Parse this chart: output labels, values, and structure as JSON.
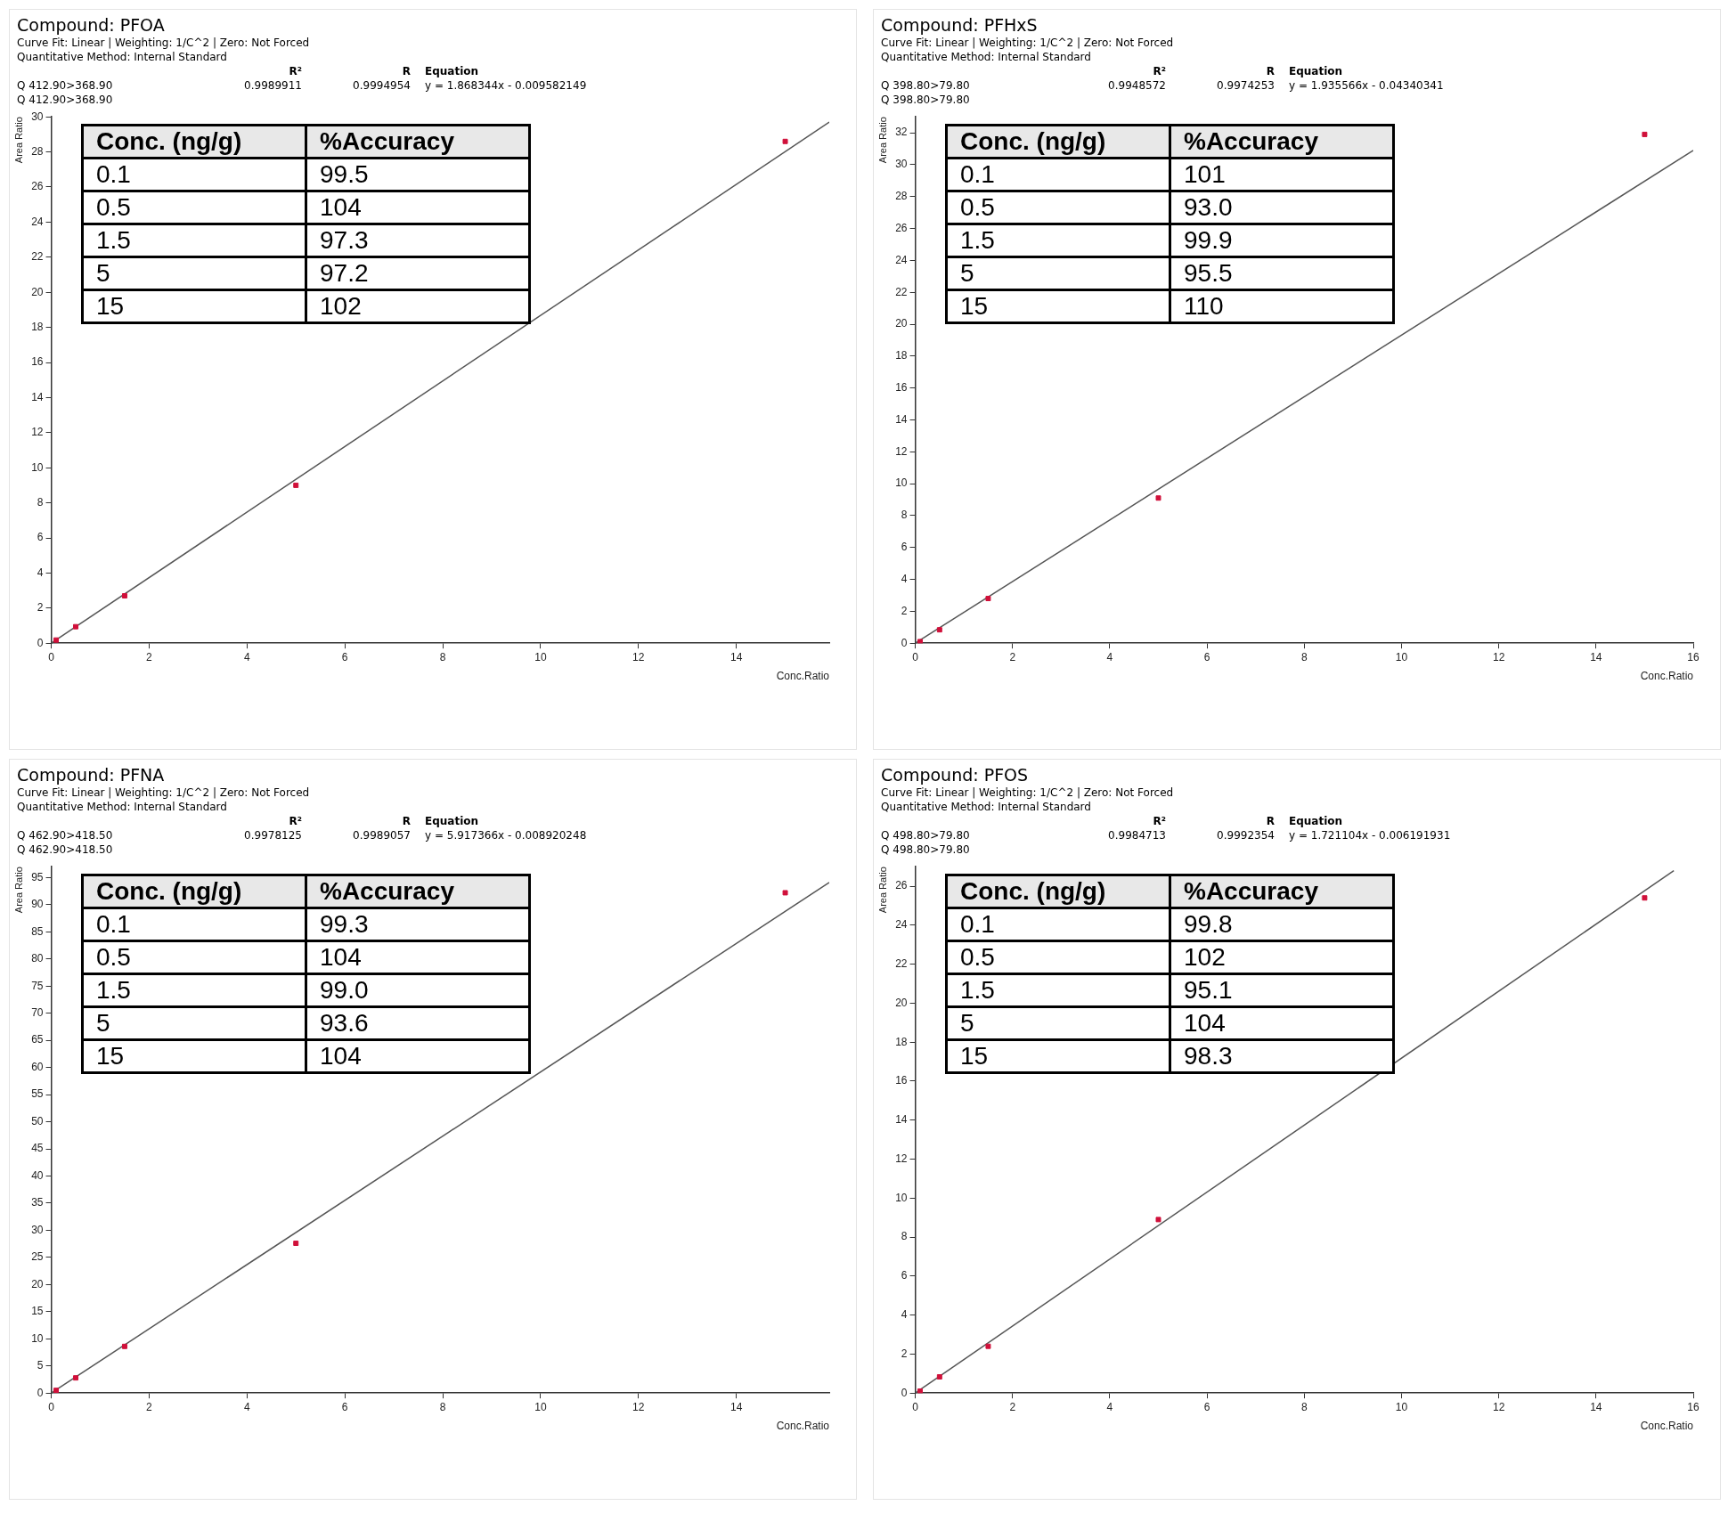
{
  "chart_data": [
    {
      "type": "scatter",
      "title": "Compound: PFOA",
      "subtitle": "Curve Fit: Linear | Weighting: 1/C^2 | Zero: Not Forced",
      "xlabel": "Conc.Ratio",
      "ylabel": "Area Ratio",
      "x": [
        0.1,
        0.5,
        1.5,
        5,
        15
      ],
      "xlim": [
        0,
        15.9
      ],
      "xticks": [
        0,
        2,
        4,
        6,
        8,
        10,
        12,
        14
      ],
      "ylim": [
        0,
        30
      ],
      "yticks": [
        0,
        2,
        4,
        6,
        8,
        10,
        12,
        14,
        16,
        18,
        20,
        22,
        24,
        26,
        28,
        30
      ],
      "grid": false,
      "legend": false,
      "marker": "square",
      "series": [
        {
          "type": "scatter",
          "color": "#d0103a",
          "values": [
            0.18,
            0.94,
            2.7,
            9.0,
            28.6
          ]
        },
        {
          "type": "line",
          "color": "#555555",
          "marker": "none",
          "x": [
            0,
            15.9
          ],
          "values": [
            0,
            29.7
          ]
        }
      ],
      "annotations": [
        "Quantitative Method: Internal Standard",
        "R²",
        "R",
        "Equation",
        "Q 412.90>368.90",
        "0.9989911",
        "0.9994954",
        "y = 1.868344x - 0.009582149",
        "Q 412.90>368.90",
        "Conc. (ng/g)",
        "%Accuracy",
        "0.1",
        "99.5",
        "0.5",
        "104",
        "1.5",
        "97.3",
        "5",
        "97.2",
        "15",
        "102"
      ]
    },
    {
      "type": "scatter",
      "title": "Compound: PFHxS",
      "subtitle": "Curve Fit: Linear | Weighting: 1/C^2 | Zero: Not Forced",
      "xlabel": "Conc.Ratio",
      "ylabel": "Area Ratio",
      "x": [
        0.1,
        0.5,
        1.5,
        5,
        15
      ],
      "xlim": [
        0,
        16
      ],
      "xticks": [
        0,
        2,
        4,
        6,
        8,
        10,
        12,
        14,
        16
      ],
      "ylim": [
        0,
        33
      ],
      "yticks": [
        0,
        2,
        4,
        6,
        8,
        10,
        12,
        14,
        16,
        18,
        20,
        22,
        24,
        26,
        28,
        30,
        32
      ],
      "grid": false,
      "legend": false,
      "marker": "square",
      "series": [
        {
          "type": "scatter",
          "color": "#d0103a",
          "values": [
            0.1,
            0.84,
            2.8,
            9.1,
            31.9
          ]
        },
        {
          "type": "line",
          "color": "#555555",
          "marker": "none",
          "x": [
            0,
            16
          ],
          "values": [
            0,
            30.9
          ]
        }
      ],
      "annotations": [
        "Quantitative Method: Internal Standard",
        "R²",
        "R",
        "Equation",
        "Q 398.80>79.80",
        "0.9948572",
        "0.9974253",
        "y = 1.935566x - 0.04340341",
        "Q 398.80>79.80",
        "Conc. (ng/g)",
        "%Accuracy",
        "0.1",
        "101",
        "0.5",
        "93.0",
        "1.5",
        "99.9",
        "5",
        "95.5",
        "15",
        "110"
      ]
    },
    {
      "type": "scatter",
      "title": "Compound: PFNA",
      "subtitle": "Curve Fit: Linear | Weighting: 1/C^2 | Zero: Not Forced",
      "xlabel": "Conc.Ratio",
      "ylabel": "Area Ratio",
      "x": [
        0.1,
        0.5,
        1.5,
        5,
        15
      ],
      "xlim": [
        0,
        15.9
      ],
      "xticks": [
        0,
        2,
        4,
        6,
        8,
        10,
        12,
        14
      ],
      "ylim": [
        0,
        97
      ],
      "yticks": [
        0,
        5,
        10,
        15,
        20,
        25,
        30,
        35,
        40,
        45,
        50,
        55,
        60,
        65,
        70,
        75,
        80,
        85,
        90,
        95
      ],
      "grid": false,
      "legend": false,
      "marker": "square",
      "series": [
        {
          "type": "scatter",
          "color": "#d0103a",
          "values": [
            0.5,
            2.8,
            8.6,
            27.6,
            92.2
          ]
        },
        {
          "type": "line",
          "color": "#555555",
          "marker": "none",
          "x": [
            0,
            15.9
          ],
          "values": [
            0,
            94.1
          ]
        }
      ],
      "annotations": [
        "Quantitative Method: Internal Standard",
        "R²",
        "R",
        "Equation",
        "Q 462.90>418.50",
        "0.9978125",
        "0.9989057",
        "y = 5.917366x - 0.008920248",
        "Q 462.90>418.50",
        "Conc. (ng/g)",
        "%Accuracy",
        "0.1",
        "99.3",
        "0.5",
        "104",
        "1.5",
        "99.0",
        "5",
        "93.6",
        "15",
        "104"
      ]
    },
    {
      "type": "scatter",
      "title": "Compound: PFOS",
      "subtitle": "Curve Fit: Linear | Weighting: 1/C^2 | Zero: Not Forced",
      "xlabel": "Conc.Ratio",
      "ylabel": "Area Ratio",
      "x": [
        0.1,
        0.5,
        1.5,
        5,
        15
      ],
      "xlim": [
        0,
        16
      ],
      "xticks": [
        0,
        2,
        4,
        6,
        8,
        10,
        12,
        14,
        16
      ],
      "ylim": [
        0,
        27
      ],
      "yticks": [
        0,
        2,
        4,
        6,
        8,
        10,
        12,
        14,
        16,
        18,
        20,
        22,
        24,
        26
      ],
      "grid": false,
      "legend": false,
      "marker": "square",
      "series": [
        {
          "type": "scatter",
          "color": "#d0103a",
          "values": [
            0.1,
            0.83,
            2.4,
            8.9,
            25.4
          ]
        },
        {
          "type": "line",
          "color": "#555555",
          "marker": "none",
          "x": [
            0,
            15.6
          ],
          "values": [
            0,
            26.8
          ]
        }
      ],
      "annotations": [
        "Quantitative Method: Internal Standard",
        "R²",
        "R",
        "Equation",
        "Q 498.80>79.80",
        "0.9984713",
        "0.9992354",
        "y = 1.721104x - 0.006191931",
        "Q 498.80>79.80",
        "Conc. (ng/g)",
        "%Accuracy",
        "0.1",
        "99.8",
        "0.5",
        "102",
        "1.5",
        "95.1",
        "5",
        "104",
        "15",
        "98.3"
      ]
    }
  ]
}
